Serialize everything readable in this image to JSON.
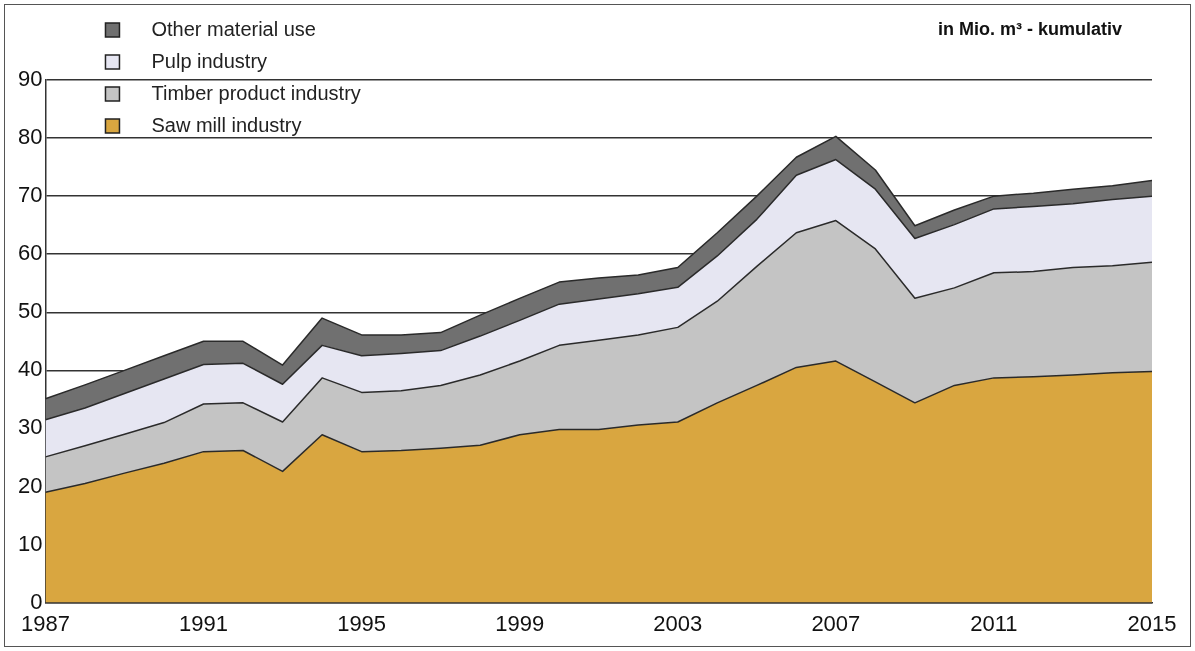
{
  "chart_data": {
    "type": "area",
    "stacked": true,
    "x": [
      1987,
      1988,
      1989,
      1990,
      1991,
      1992,
      1993,
      1994,
      1995,
      1996,
      1997,
      1998,
      1999,
      2000,
      2001,
      2002,
      2003,
      2004,
      2005,
      2006,
      2007,
      2008,
      2009,
      2010,
      2011,
      2012,
      2013,
      2014,
      2015
    ],
    "xlim": [
      1987,
      2015
    ],
    "xticks": [
      1987,
      1991,
      1995,
      1999,
      2003,
      2007,
      2011,
      2015
    ],
    "ylim": [
      0,
      90
    ],
    "yticks": [
      0,
      10,
      20,
      30,
      40,
      50,
      60,
      70,
      80,
      90
    ],
    "grid": "y",
    "legend": "top left",
    "annotations": [
      "in Mio. m³ - kumulativ"
    ],
    "series": [
      {
        "name": "Saw mill industry",
        "color": "#d9a640",
        "values": [
          19.0,
          20.5,
          22.3,
          24.0,
          26.0,
          26.2,
          22.6,
          28.9,
          26.0,
          26.2,
          26.6,
          27.1,
          28.9,
          29.8,
          29.8,
          30.6,
          31.1,
          34.4,
          37.4,
          40.5,
          41.6,
          38.0,
          34.4,
          37.4,
          38.7,
          38.9,
          39.2,
          39.6,
          39.8
        ]
      },
      {
        "name": "Timber product industry",
        "color": "#c4c4c4",
        "values": [
          6.1,
          6.5,
          6.7,
          7.0,
          8.2,
          8.2,
          8.5,
          9.8,
          10.2,
          10.3,
          10.8,
          12.1,
          12.7,
          14.5,
          15.4,
          15.5,
          16.3,
          17.5,
          20.5,
          23.2,
          24.2,
          22.9,
          18.0,
          16.8,
          18.1,
          18.1,
          18.5,
          18.4,
          18.8
        ]
      },
      {
        "name": "Pulp industry",
        "color": "#e6e6f2",
        "values": [
          6.4,
          6.5,
          7.0,
          7.5,
          6.8,
          6.8,
          6.5,
          5.6,
          6.3,
          6.4,
          6.0,
          6.7,
          7.0,
          7.1,
          7.1,
          7.1,
          6.9,
          7.8,
          8.1,
          9.9,
          10.5,
          10.3,
          10.3,
          10.9,
          11.0,
          11.2,
          11.0,
          11.4,
          11.4
        ]
      },
      {
        "name": "Other material use",
        "color": "#707070",
        "values": [
          3.6,
          4.0,
          4.0,
          4.0,
          4.0,
          3.8,
          3.3,
          4.7,
          3.6,
          3.2,
          3.1,
          3.6,
          3.8,
          3.8,
          3.6,
          3.2,
          3.4,
          4.0,
          4.0,
          3.1,
          4.0,
          3.3,
          2.2,
          2.5,
          2.2,
          2.3,
          2.5,
          2.4,
          2.7
        ]
      }
    ]
  }
}
